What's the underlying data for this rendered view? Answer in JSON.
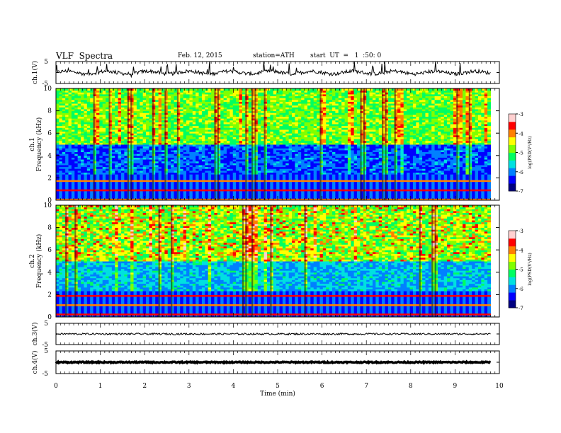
{
  "header": {
    "title": "VLF  Spectra",
    "date": "Feb. 12, 2015",
    "station": "station=ATH",
    "start": "start  UT  =   1  :50: 0"
  },
  "chart_data": [
    {
      "type": "line",
      "panel": "ch1-waveform",
      "ylabel": "ch.1(V)",
      "yticklabels": [
        "5",
        "-5"
      ],
      "ylim": [
        -5,
        5
      ],
      "xlim": [
        0,
        10
      ],
      "data_extent_min": 9.8,
      "line_color": "#000000",
      "baseline": 0,
      "note_values": "noisy trace near 0 V with sporadic spikes"
    },
    {
      "type": "heatmap",
      "panel": "ch1-spectrogram",
      "ylabel": "ch.1\nFrequency  (kHz)",
      "ylabel_lines": [
        "ch.1",
        "Frequency  (kHz)"
      ],
      "yticks": [
        0,
        2,
        4,
        6,
        8,
        10
      ],
      "ylim": [
        0,
        10
      ],
      "xlim": [
        0,
        10
      ],
      "data_extent_min": 9.8,
      "colorbar": {
        "label": "log(PSD(V²/Hz)",
        "ticks": [
          "-3",
          "-4",
          "-5",
          "-6",
          "-7"
        ],
        "range": [
          -7,
          -3
        ]
      }
    },
    {
      "type": "heatmap",
      "panel": "ch2-spectrogram",
      "ylabel": "ch.2\nFrequency  (kHz)",
      "ylabel_lines": [
        "ch.2",
        "Frequency  (kHz)"
      ],
      "yticks": [
        0,
        2,
        4,
        6,
        8,
        10
      ],
      "ylim": [
        0,
        10
      ],
      "xlim": [
        0,
        10
      ],
      "data_extent_min": 9.8,
      "colorbar": {
        "label": "log(PSD(V²/Hz)",
        "ticks": [
          "-3",
          "-4",
          "-5",
          "-6",
          "-7"
        ],
        "range": [
          -7,
          -3
        ]
      }
    },
    {
      "type": "line",
      "panel": "ch3-waveform",
      "ylabel": "ch.3(V)",
      "yticklabels": [
        "5",
        "-5"
      ],
      "ylim": [
        -5,
        5
      ],
      "xlim": [
        0,
        10
      ],
      "data_extent_min": 9.8,
      "line_color": "#000000",
      "baseline": 0
    },
    {
      "type": "line",
      "panel": "ch4-waveform",
      "ylabel": "ch.4(V)",
      "yticklabels": [
        "5",
        "-5"
      ],
      "ylim": [
        -5,
        5
      ],
      "xlim": [
        0,
        10
      ],
      "data_extent_min": 9.8,
      "line_color": "#000000",
      "baseline": 0
    }
  ],
  "xaxis": {
    "label": "Time  (min)",
    "ticks": [
      0,
      1,
      2,
      3,
      4,
      5,
      6,
      7,
      8,
      9,
      10
    ]
  },
  "colorscale": [
    "#000080",
    "#0000ff",
    "#0080ff",
    "#00e0e0",
    "#00ff60",
    "#80ff00",
    "#ffff00",
    "#ff8000",
    "#ff0000",
    "#ffd0d0"
  ]
}
